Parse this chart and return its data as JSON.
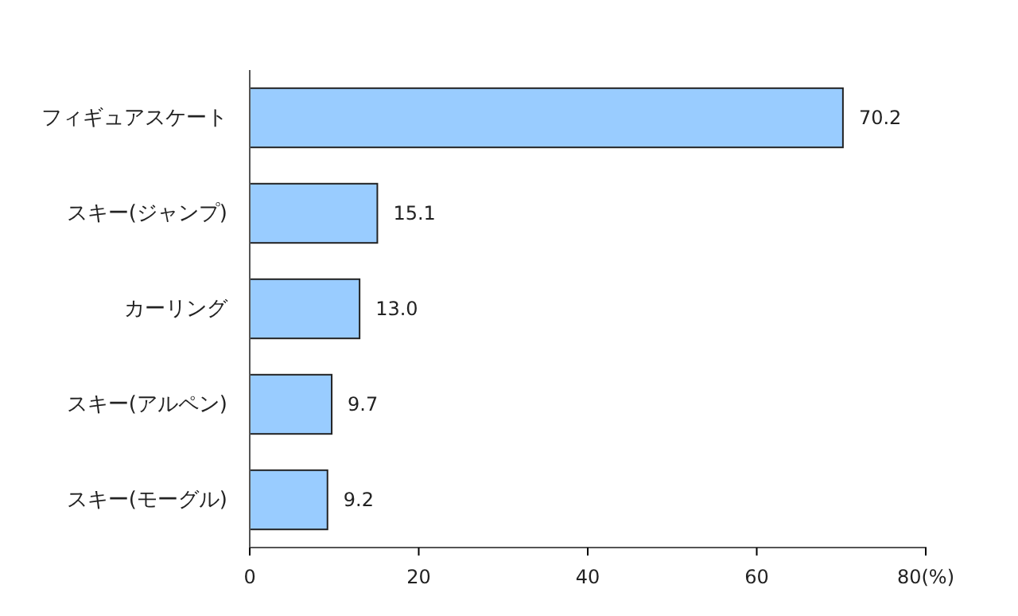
{
  "chart_data": {
    "type": "bar",
    "orientation": "horizontal",
    "categories": [
      "フィギュアスケート",
      "スキー(ジャンプ)",
      "カーリング",
      "スキー(アルペン)",
      "スキー(モーグル)"
    ],
    "values": [
      70.2,
      15.1,
      13.0,
      9.7,
      9.2
    ],
    "value_labels": [
      "70.2",
      "15.1",
      "13.0",
      "9.7",
      "9.2"
    ],
    "color": "#99ccff",
    "xlim": [
      0,
      80
    ],
    "xticks": [
      0,
      20,
      40,
      60,
      {
        "value": 80,
        "label": "80(%)"
      }
    ],
    "grid": false
  }
}
